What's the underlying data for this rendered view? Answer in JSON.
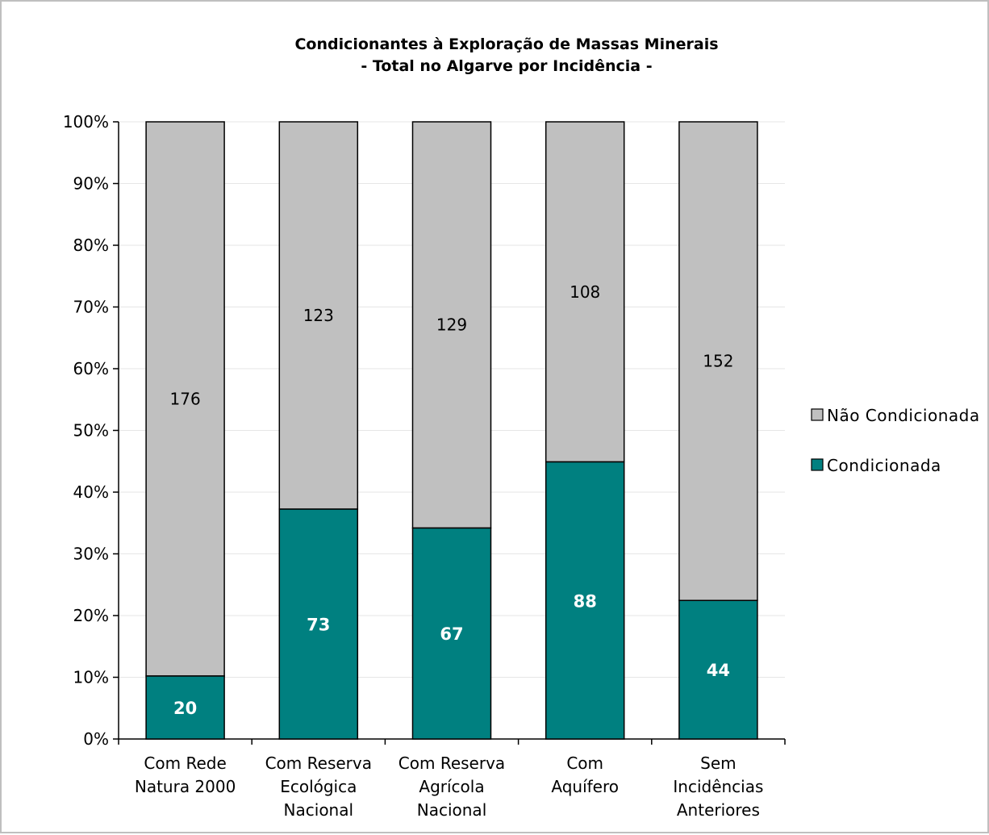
{
  "chart_data": {
    "type": "bar",
    "stacked": "percent",
    "title_lines": [
      "Condicionantes à Exploração de Massas Minerais",
      "- Total no Algarve por Incidência -"
    ],
    "categories": [
      [
        "Com Rede",
        "Natura 2000"
      ],
      [
        "Com Reserva",
        "Ecológica",
        "Nacional"
      ],
      [
        "Com Reserva",
        "Agrícola",
        "Nacional"
      ],
      [
        "Com",
        "Aquífero"
      ],
      [
        "Sem",
        "Incidências",
        "Anteriores"
      ]
    ],
    "series": [
      {
        "name": "Condicionada",
        "values": [
          20,
          73,
          67,
          88,
          44
        ],
        "color": "#008080"
      },
      {
        "name": "Não Condicionada",
        "values": [
          176,
          123,
          129,
          108,
          152
        ],
        "color": "#c0c0c0"
      }
    ],
    "yticks": [
      "0%",
      "10%",
      "20%",
      "30%",
      "40%",
      "50%",
      "60%",
      "70%",
      "80%",
      "90%",
      "100%"
    ],
    "ylim": [
      0,
      100
    ],
    "grid": true,
    "legend": {
      "position": "right",
      "items": [
        "Não Condicionada",
        "Condicionada"
      ]
    }
  }
}
